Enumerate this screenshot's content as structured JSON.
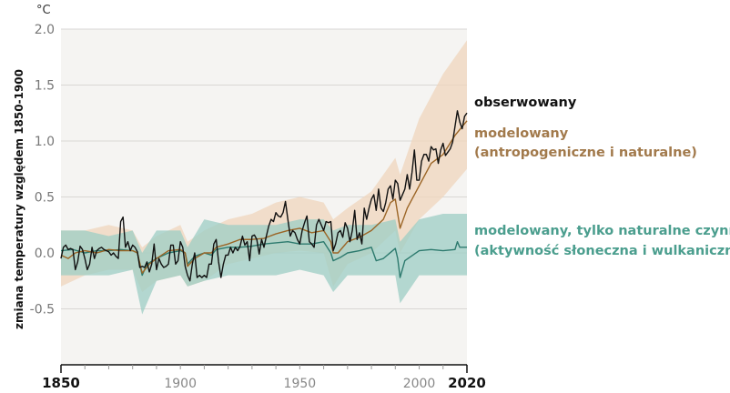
{
  "chart_data": {
    "type": "line",
    "unit_label": "°C",
    "ylabel": "zmiana temperatury względem 1850-1900",
    "xlim": [
      1850,
      2020
    ],
    "ylim": [
      -1.0,
      2.0
    ],
    "yticks": [
      "2.0",
      "1.5",
      "1.0",
      "0.5",
      "0.0",
      "-0.5"
    ],
    "ytick_values": [
      2.0,
      1.5,
      1.0,
      0.5,
      0.0,
      -0.5
    ],
    "xticks": [
      "1850",
      "1900",
      "1950",
      "2000",
      "2020"
    ],
    "xtick_values": [
      1850,
      1900,
      1950,
      2000,
      2020
    ],
    "grid": true,
    "legend_placement": "right",
    "colors": {
      "background": "#f5f4f2",
      "observed": "#111111",
      "anthro_line": "#9b6526",
      "anthro_band": "#efd5bc",
      "natural_line": "#2d7a6e",
      "natural_band": "#9ccdc4",
      "anthro_label": "#a27a4c",
      "natural_label": "#4b9e8e"
    },
    "series": [
      {
        "name": "obserwowany",
        "x_start": 1850,
        "values": [
          -0.05,
          0.05,
          0.07,
          0.03,
          0.04,
          0.03,
          -0.15,
          -0.08,
          0.06,
          0.03,
          -0.05,
          -0.15,
          -0.1,
          0.05,
          -0.05,
          0.02,
          0.04,
          0.05,
          0.03,
          0.02,
          0.01,
          -0.02,
          0.0,
          -0.03,
          -0.05,
          0.28,
          0.32,
          0.05,
          0.1,
          0.02,
          0.07,
          0.05,
          0.01,
          -0.13,
          -0.12,
          -0.13,
          -0.08,
          -0.17,
          -0.1,
          0.08,
          -0.15,
          -0.05,
          -0.1,
          -0.13,
          -0.12,
          -0.1,
          0.07,
          0.07,
          -0.1,
          -0.07,
          0.1,
          0.05,
          -0.12,
          -0.2,
          -0.25,
          -0.1,
          0.0,
          -0.22,
          -0.2,
          -0.22,
          -0.2,
          -0.22,
          -0.1,
          -0.1,
          0.08,
          0.12,
          -0.08,
          -0.22,
          -0.1,
          -0.02,
          -0.02,
          0.05,
          0.0,
          0.05,
          0.02,
          0.06,
          0.15,
          0.07,
          0.1,
          -0.07,
          0.15,
          0.16,
          0.12,
          -0.01,
          0.12,
          0.05,
          0.15,
          0.24,
          0.3,
          0.28,
          0.36,
          0.33,
          0.32,
          0.36,
          0.46,
          0.3,
          0.15,
          0.2,
          0.18,
          0.12,
          0.08,
          0.2,
          0.27,
          0.33,
          0.1,
          0.08,
          0.05,
          0.25,
          0.3,
          0.25,
          0.2,
          0.28,
          0.27,
          0.28,
          0.02,
          0.08,
          0.18,
          0.2,
          0.14,
          0.27,
          0.22,
          0.1,
          0.2,
          0.38,
          0.12,
          0.18,
          0.08,
          0.4,
          0.3,
          0.4,
          0.48,
          0.52,
          0.38,
          0.57,
          0.4,
          0.37,
          0.45,
          0.57,
          0.6,
          0.48,
          0.65,
          0.62,
          0.47,
          0.52,
          0.57,
          0.7,
          0.57,
          0.72,
          0.92,
          0.65,
          0.65,
          0.82,
          0.88,
          0.88,
          0.82,
          0.95,
          0.92,
          0.93,
          0.8,
          0.92,
          0.98,
          0.87,
          0.9,
          0.93,
          0.99,
          1.13,
          1.27,
          1.17,
          1.11,
          1.22,
          1.25
        ]
      },
      {
        "name": "modelowany (antropogeniczne i naturalne)",
        "x": [
          1850,
          1853,
          1856,
          1860,
          1865,
          1870,
          1875,
          1880,
          1882,
          1884,
          1887,
          1890,
          1895,
          1900,
          1902,
          1903,
          1906,
          1910,
          1913,
          1915,
          1920,
          1925,
          1930,
          1935,
          1940,
          1945,
          1950,
          1955,
          1960,
          1963,
          1964,
          1966,
          1970,
          1975,
          1980,
          1985,
          1988,
          1990,
          1991,
          1992,
          1995,
          2000,
          2005,
          2010,
          2015,
          2020
        ],
        "values": [
          -0.02,
          -0.05,
          0.0,
          0.02,
          0.0,
          0.03,
          0.02,
          0.02,
          0.0,
          -0.18,
          -0.1,
          -0.05,
          0.02,
          0.03,
          0.0,
          -0.12,
          -0.05,
          0.0,
          0.0,
          0.05,
          0.08,
          0.12,
          0.12,
          0.13,
          0.17,
          0.2,
          0.22,
          0.18,
          0.2,
          0.1,
          0.0,
          0.0,
          0.1,
          0.14,
          0.2,
          0.3,
          0.45,
          0.48,
          0.35,
          0.22,
          0.4,
          0.6,
          0.8,
          0.88,
          1.05,
          1.18
        ],
        "band_x": [
          1850,
          1860,
          1870,
          1880,
          1884,
          1890,
          1900,
          1903,
          1910,
          1920,
          1930,
          1940,
          1950,
          1960,
          1964,
          1970,
          1980,
          1990,
          1992,
          2000,
          2010,
          2020
        ],
        "band_lower": [
          -0.3,
          -0.2,
          -0.15,
          -0.15,
          -0.35,
          -0.25,
          -0.2,
          -0.3,
          -0.25,
          -0.1,
          -0.05,
          0.0,
          0.02,
          0.0,
          -0.3,
          -0.1,
          0.0,
          0.2,
          0.0,
          0.3,
          0.5,
          0.75
        ],
        "band_upper": [
          0.2,
          0.2,
          0.25,
          0.2,
          0.05,
          0.15,
          0.25,
          0.1,
          0.2,
          0.3,
          0.35,
          0.45,
          0.5,
          0.45,
          0.3,
          0.4,
          0.55,
          0.85,
          0.7,
          1.2,
          1.6,
          1.9
        ]
      },
      {
        "name": "modelowany, tylko naturalne czynniki (aktywność słoneczna i wulkaniczna)",
        "x": [
          1850,
          1855,
          1860,
          1865,
          1870,
          1875,
          1880,
          1882,
          1884,
          1886,
          1890,
          1895,
          1900,
          1902,
          1903,
          1906,
          1910,
          1913,
          1915,
          1920,
          1925,
          1930,
          1935,
          1940,
          1945,
          1950,
          1955,
          1960,
          1963,
          1964,
          1967,
          1970,
          1975,
          1980,
          1982,
          1985,
          1990,
          1991,
          1992,
          1994,
          2000,
          2005,
          2010,
          2015,
          2016,
          2017,
          2020
        ],
        "values": [
          0.02,
          0.03,
          0.0,
          0.02,
          0.02,
          0.03,
          0.02,
          0.0,
          -0.2,
          -0.1,
          -0.05,
          0.0,
          0.02,
          0.0,
          -0.1,
          -0.03,
          0.0,
          -0.02,
          0.03,
          0.05,
          0.05,
          0.06,
          0.08,
          0.09,
          0.1,
          0.08,
          0.08,
          0.1,
          0.0,
          -0.07,
          -0.04,
          0.0,
          0.02,
          0.05,
          -0.07,
          -0.05,
          0.04,
          -0.05,
          -0.22,
          -0.07,
          0.02,
          0.03,
          0.02,
          0.03,
          0.1,
          0.05,
          0.05
        ],
        "band_x": [
          1850,
          1860,
          1870,
          1880,
          1884,
          1890,
          1900,
          1903,
          1910,
          1920,
          1930,
          1940,
          1950,
          1960,
          1964,
          1970,
          1980,
          1990,
          1992,
          2000,
          2010,
          2020
        ],
        "band_lower": [
          -0.2,
          -0.2,
          -0.2,
          -0.15,
          -0.55,
          -0.25,
          -0.2,
          -0.3,
          -0.25,
          -0.2,
          -0.2,
          -0.2,
          -0.15,
          -0.2,
          -0.35,
          -0.2,
          -0.2,
          -0.2,
          -0.45,
          -0.2,
          -0.2,
          -0.2
        ],
        "band_upper": [
          0.2,
          0.2,
          0.15,
          0.2,
          0.0,
          0.2,
          0.2,
          0.05,
          0.3,
          0.25,
          0.25,
          0.25,
          0.3,
          0.3,
          0.2,
          0.25,
          0.25,
          0.3,
          0.1,
          0.3,
          0.35,
          0.35
        ]
      }
    ]
  },
  "legend": {
    "observed": "obserwowany",
    "anthro_line1": "modelowany",
    "anthro_line2": "(antropogeniczne i naturalne)",
    "natural_line1": "modelowany, tylko naturalne czynniki",
    "natural_line2": "(aktywność słoneczna i wulkaniczna)"
  }
}
